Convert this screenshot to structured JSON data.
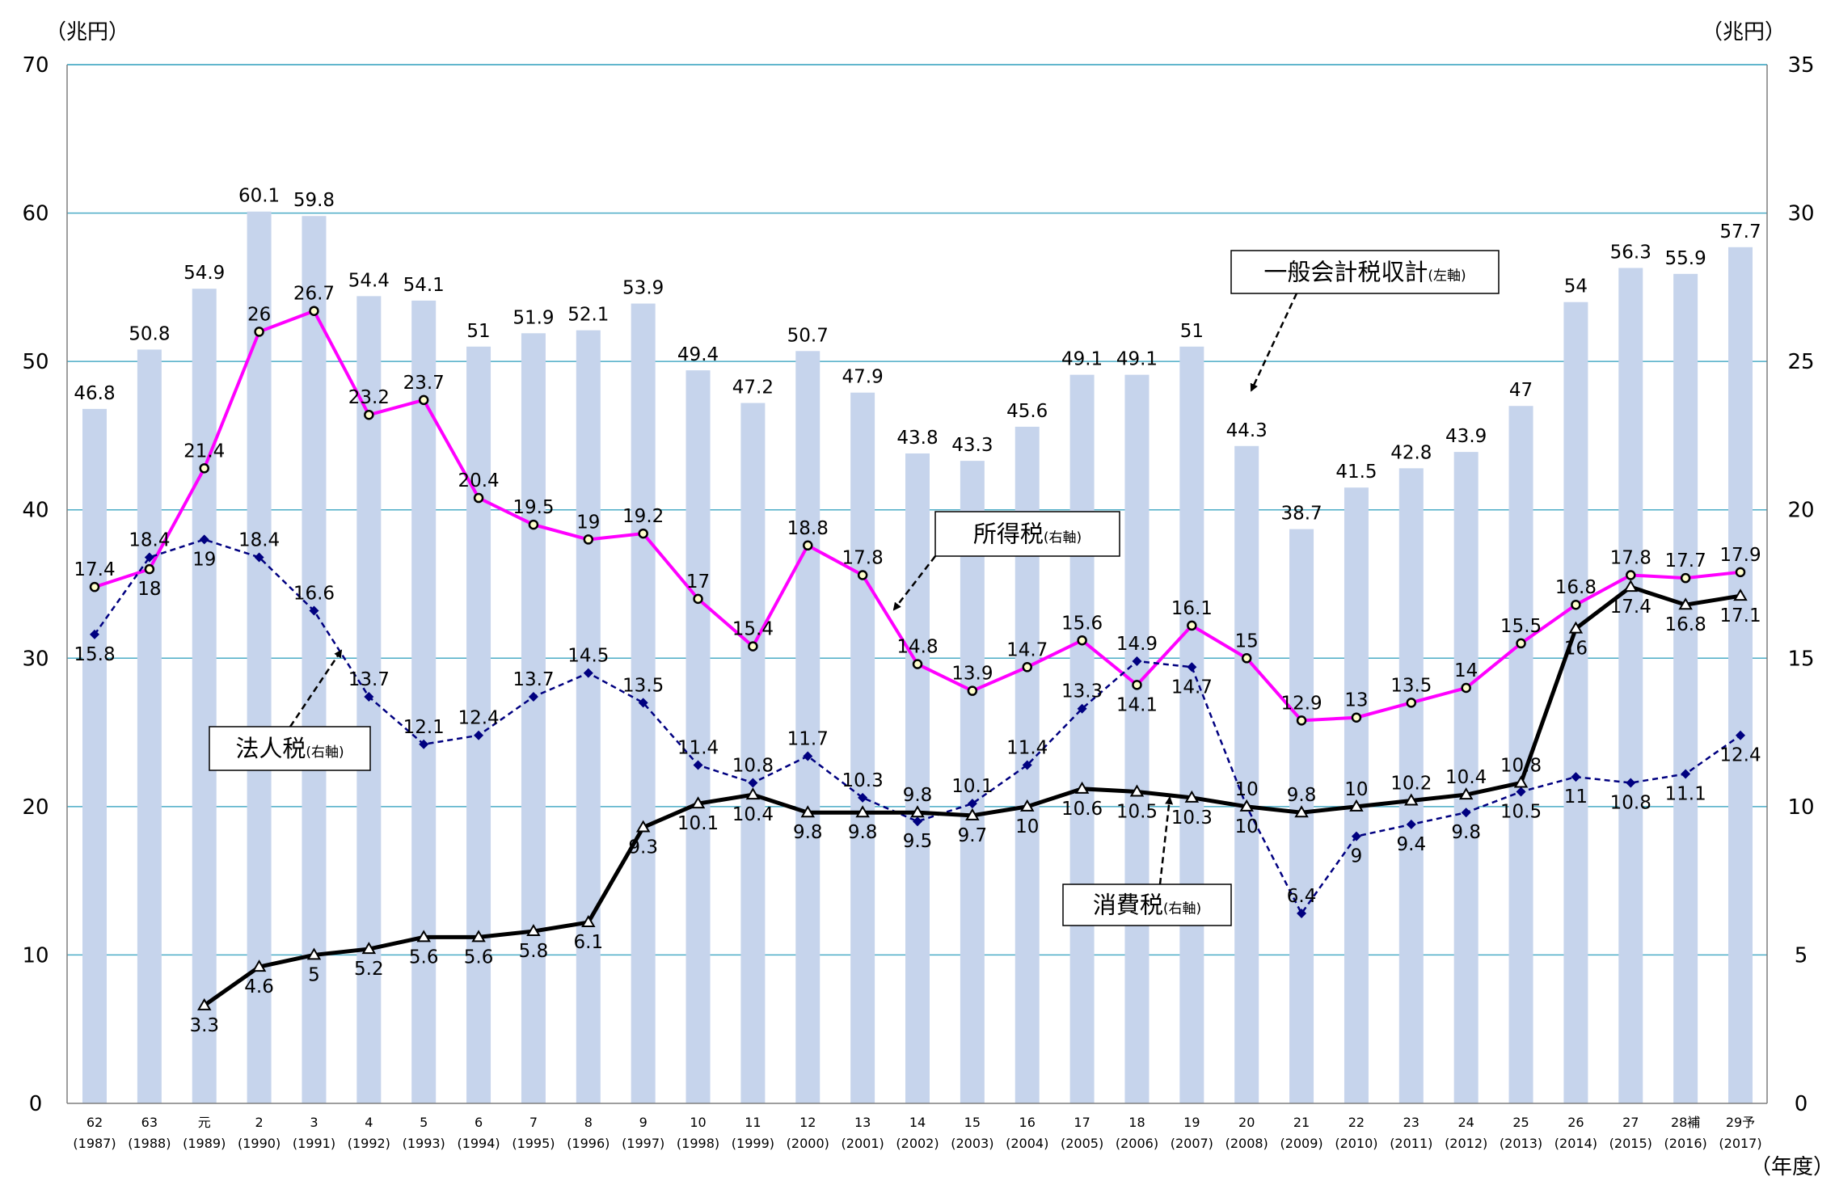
{
  "chart_data": {
    "type": "bar+line",
    "left_axis": {
      "unit": "（兆円）",
      "range": [
        0,
        70
      ],
      "ticks": [
        0,
        10,
        20,
        30,
        40,
        50,
        60,
        70
      ]
    },
    "right_axis": {
      "unit": "（兆円）",
      "range": [
        0,
        35
      ],
      "ticks": [
        0,
        5,
        10,
        15,
        20,
        25,
        30,
        35
      ]
    },
    "xlabel": "（年度）",
    "grid": true,
    "categories": [
      {
        "era": "62",
        "year": "(1987)"
      },
      {
        "era": "63",
        "year": "(1988)"
      },
      {
        "era": "元",
        "year": "(1989)"
      },
      {
        "era": "2",
        "year": "(1990)"
      },
      {
        "era": "3",
        "year": "(1991)"
      },
      {
        "era": "4",
        "year": "(1992)"
      },
      {
        "era": "5",
        "year": "(1993)"
      },
      {
        "era": "6",
        "year": "(1994)"
      },
      {
        "era": "7",
        "year": "(1995)"
      },
      {
        "era": "8",
        "year": "(1996)"
      },
      {
        "era": "9",
        "year": "(1997)"
      },
      {
        "era": "10",
        "year": "(1998)"
      },
      {
        "era": "11",
        "year": "(1999)"
      },
      {
        "era": "12",
        "year": "(2000)"
      },
      {
        "era": "13",
        "year": "(2001)"
      },
      {
        "era": "14",
        "year": "(2002)"
      },
      {
        "era": "15",
        "year": "(2003)"
      },
      {
        "era": "16",
        "year": "(2004)"
      },
      {
        "era": "17",
        "year": "(2005)"
      },
      {
        "era": "18",
        "year": "(2006)"
      },
      {
        "era": "19",
        "year": "(2007)"
      },
      {
        "era": "20",
        "year": "(2008)"
      },
      {
        "era": "21",
        "year": "(2009)"
      },
      {
        "era": "22",
        "year": "(2010)"
      },
      {
        "era": "23",
        "year": "(2011)"
      },
      {
        "era": "24",
        "year": "(2012)"
      },
      {
        "era": "25",
        "year": "(2013)"
      },
      {
        "era": "26",
        "year": "(2014)"
      },
      {
        "era": "27",
        "year": "(2015)"
      },
      {
        "era": "28補",
        "year": "(2016)"
      },
      {
        "era": "29予",
        "year": "(2017)"
      }
    ],
    "series": [
      {
        "name": "一般会計税収計",
        "axis_note": "(左軸)",
        "type": "bar",
        "axis": "left",
        "color": "#c6d4ec",
        "values": [
          46.8,
          50.8,
          54.9,
          60.1,
          59.8,
          54.4,
          54.1,
          51.0,
          51.9,
          52.1,
          53.9,
          49.4,
          47.2,
          50.7,
          47.9,
          43.8,
          43.3,
          45.6,
          49.1,
          49.1,
          51.0,
          44.3,
          38.7,
          41.5,
          42.8,
          43.9,
          47.0,
          54.0,
          56.3,
          55.9,
          57.7
        ]
      },
      {
        "name": "所得税",
        "axis_note": "(右軸)",
        "type": "line",
        "axis": "right",
        "color": "#ff00ff",
        "marker": "circle",
        "values": [
          17.4,
          18.0,
          21.4,
          26.0,
          26.7,
          23.2,
          23.7,
          20.4,
          19.5,
          19.0,
          19.2,
          17.0,
          15.4,
          18.8,
          17.8,
          14.8,
          13.9,
          14.7,
          15.6,
          14.1,
          16.1,
          15.0,
          12.9,
          13.0,
          13.5,
          14.0,
          15.5,
          16.8,
          17.8,
          17.7,
          17.9
        ]
      },
      {
        "name": "法人税",
        "axis_note": "(右軸)",
        "type": "line",
        "axis": "right",
        "color": "#000080",
        "marker": "diamond",
        "dash": true,
        "values": [
          15.8,
          18.4,
          19.0,
          18.4,
          16.6,
          13.7,
          12.1,
          12.4,
          13.7,
          14.5,
          13.5,
          11.4,
          10.8,
          11.7,
          10.3,
          9.5,
          10.1,
          11.4,
          13.3,
          14.9,
          14.7,
          10.0,
          6.4,
          9.0,
          9.4,
          9.8,
          10.5,
          11.0,
          10.8,
          11.1,
          12.4
        ]
      },
      {
        "name": "消費税",
        "axis_note": "(右軸)",
        "type": "line",
        "axis": "right",
        "color": "#000000",
        "marker": "triangle",
        "values": [
          null,
          null,
          3.3,
          4.6,
          5.0,
          5.2,
          5.6,
          5.6,
          5.8,
          6.1,
          9.3,
          10.1,
          10.4,
          9.8,
          9.8,
          9.8,
          9.7,
          10.0,
          10.6,
          10.5,
          10.3,
          10.0,
          9.8,
          10.0,
          10.2,
          10.4,
          10.8,
          16.0,
          17.4,
          16.8,
          17.1
        ]
      }
    ]
  }
}
